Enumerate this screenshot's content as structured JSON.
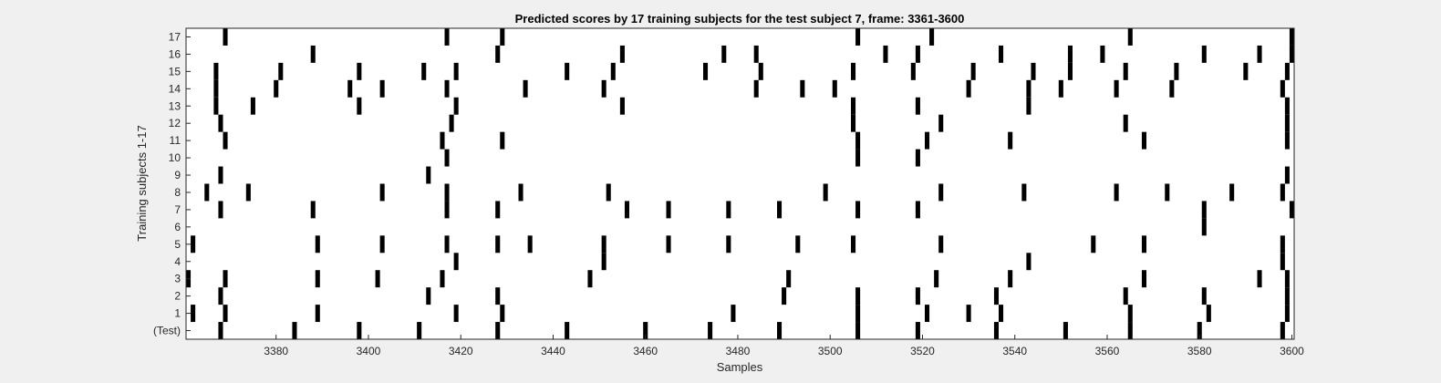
{
  "chart_data": {
    "type": "raster",
    "title": "Predicted scores by 17 training subjects for the test subject 7, frame: 3361-3600",
    "xlabel": "Samples",
    "ylabel": "Training subjects 1-17",
    "xlim": [
      3361,
      3600
    ],
    "x_ticks": [
      3380,
      3400,
      3420,
      3440,
      3460,
      3480,
      3500,
      3520,
      3540,
      3560,
      3580,
      3600
    ],
    "grid": false,
    "colors": {
      "background": "#ffffff",
      "event": "#000000",
      "figure": "#f0f0f0"
    },
    "rows": [
      {
        "label": "(Test)",
        "events": [
          3368,
          3384,
          3398,
          3411,
          3428,
          3443,
          3460,
          3474,
          3489,
          3506,
          3519,
          3536,
          3551,
          3565,
          3580,
          3598
        ]
      },
      {
        "label": "1",
        "events": [
          3362,
          3369,
          3389,
          3419,
          3429,
          3479,
          3506,
          3521,
          3530,
          3537,
          3565,
          3582,
          3599
        ]
      },
      {
        "label": "2",
        "events": [
          3368,
          3413,
          3428,
          3490,
          3506,
          3519,
          3536,
          3564,
          3581,
          3599
        ]
      },
      {
        "label": "3",
        "events": [
          3361,
          3369,
          3389,
          3402,
          3416,
          3448,
          3491,
          3523,
          3539,
          3568,
          3593,
          3599
        ]
      },
      {
        "label": "4",
        "events": [
          3419,
          3451,
          3543,
          3598
        ]
      },
      {
        "label": "5",
        "events": [
          3362,
          3389,
          3403,
          3417,
          3428,
          3435,
          3451,
          3465,
          3478,
          3493,
          3505,
          3524,
          3557,
          3568,
          3598
        ]
      },
      {
        "label": "6",
        "events": [
          3581
        ]
      },
      {
        "label": "7",
        "events": [
          3368,
          3388,
          3417,
          3428,
          3456,
          3465,
          3478,
          3489,
          3506,
          3519,
          3581,
          3600
        ]
      },
      {
        "label": "8",
        "events": [
          3365,
          3374,
          3403,
          3417,
          3433,
          3452,
          3499,
          3524,
          3542,
          3562,
          3573,
          3587,
          3598
        ]
      },
      {
        "label": "9",
        "events": [
          3368,
          3413,
          3599
        ]
      },
      {
        "label": "10",
        "events": [
          3417,
          3506,
          3519
        ]
      },
      {
        "label": "11",
        "events": [
          3369,
          3416,
          3429,
          3506,
          3521,
          3539,
          3568,
          3599
        ]
      },
      {
        "label": "12",
        "events": [
          3368,
          3418,
          3505,
          3524,
          3564,
          3599
        ]
      },
      {
        "label": "13",
        "events": [
          3367,
          3375,
          3398,
          3419,
          3455,
          3505,
          3519,
          3543,
          3599
        ]
      },
      {
        "label": "14",
        "events": [
          3367,
          3380,
          3396,
          3403,
          3417,
          3434,
          3451,
          3484,
          3494,
          3501,
          3530,
          3543,
          3550,
          3562,
          3574,
          3598
        ]
      },
      {
        "label": "15",
        "events": [
          3367,
          3381,
          3398,
          3412,
          3419,
          3443,
          3453,
          3473,
          3485,
          3505,
          3518,
          3531,
          3544,
          3552,
          3564,
          3575,
          3590,
          3599
        ]
      },
      {
        "label": "16",
        "events": [
          3388,
          3428,
          3455,
          3477,
          3484,
          3512,
          3519,
          3537,
          3552,
          3559,
          3581,
          3593,
          3600
        ]
      },
      {
        "label": "17",
        "events": [
          3369,
          3417,
          3429,
          3506,
          3522,
          3565,
          3600
        ]
      }
    ]
  }
}
